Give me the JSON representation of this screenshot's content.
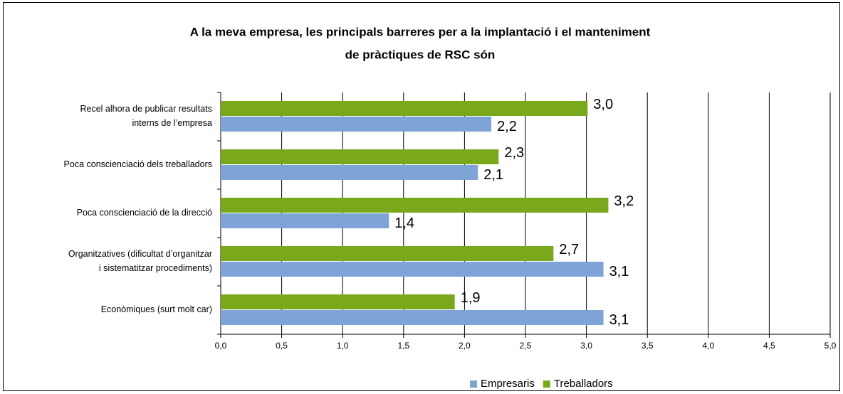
{
  "chart_data": {
    "type": "barh",
    "title": [
      "A la meva empresa, les principals barreres per a la implantació i el manteniment",
      "de pràctiques de RSC són"
    ],
    "categories": [
      "Recel alhora de publicar resultats\ninterns de l’empresa",
      "Poca conscienciació dels treballadors",
      "Poca conscienciació de la direcció",
      "Organitzatives (dificultat d’organitzar\ni sistematitzar procediments)",
      "Econòmiques (surt molt car)"
    ],
    "series": [
      {
        "name": "Empresaris",
        "color": "#7ea3d6",
        "values": [
          2.22,
          2.11,
          1.38,
          3.14,
          3.14
        ],
        "value_labels": [
          "2,2",
          "2,1",
          "1,4",
          "3,1",
          "3,1"
        ]
      },
      {
        "name": "Treballadors",
        "color": "#7aa81c",
        "values": [
          3.01,
          2.28,
          3.18,
          2.73,
          1.92
        ],
        "value_labels": [
          "3,0",
          "2,3",
          "3,2",
          "2,7",
          "1,9"
        ]
      }
    ],
    "xlim": [
      0,
      5
    ],
    "xticks": [
      {
        "value": 0,
        "label": "0,0"
      },
      {
        "value": 0.5,
        "label": "0,5"
      },
      {
        "value": 1,
        "label": "1,0"
      },
      {
        "value": 1.5,
        "label": "1,5"
      },
      {
        "value": 2,
        "label": "2,0"
      },
      {
        "value": 2.5,
        "label": "2,5"
      },
      {
        "value": 3,
        "label": "3,0"
      },
      {
        "value": 3.5,
        "label": "3,5"
      },
      {
        "value": 4,
        "label": "4,0"
      },
      {
        "value": 4.5,
        "label": "4,5"
      },
      {
        "value": 5,
        "label": "5,0"
      }
    ],
    "grid": true,
    "legend": "bottom"
  }
}
